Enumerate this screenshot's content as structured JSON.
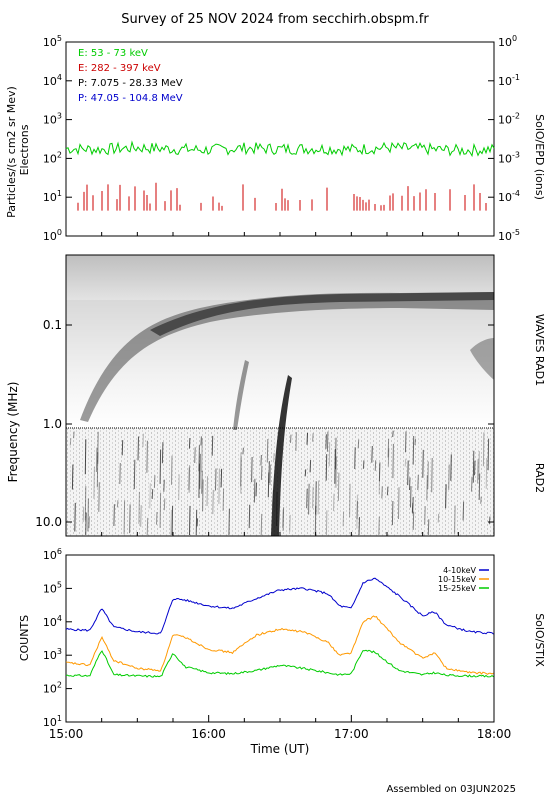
{
  "title": "Survey of 25 NOV 2024 from secchirh.obspm.fr",
  "footer": "Assembled on 03JUN2025",
  "chart_data": [
    {
      "type": "line",
      "panel": "SolO/EPD",
      "ylabel": "Particles/(s cm2 sr Mev)",
      "ylabel2": "Electrons",
      "right_label": "SolO/EPD (ions)",
      "yscale": "log",
      "ylim": [
        1,
        100000
      ],
      "y_ticks": [
        "10^0",
        "10^1",
        "10^2",
        "10^3",
        "10^4",
        "10^5"
      ],
      "y2lim": [
        1e-05,
        1
      ],
      "y2_ticks": [
        "10^-5",
        "10^-4",
        "10^-3",
        "10^-2",
        "10^-1",
        "10^0"
      ],
      "legend": [
        {
          "name": "E: 53 - 73 keV",
          "color": "#00cc00"
        },
        {
          "name": "E: 282 - 397 keV",
          "color": "#cc0000"
        },
        {
          "name": "P: 7.075 - 28.33 MeV",
          "color": "#000000"
        },
        {
          "name": "P: 47.05 - 104.8 MeV",
          "color": "#0000cc"
        }
      ],
      "x": [
        "15:00",
        "15:15",
        "15:30",
        "15:45",
        "16:00",
        "16:15",
        "16:30",
        "16:45",
        "17:00",
        "17:15",
        "17:30",
        "17:45",
        "18:00"
      ],
      "series": [
        {
          "name": "E: 53 - 73 keV",
          "values": [
            180,
            170,
            190,
            175,
            165,
            185,
            175,
            180,
            170,
            190,
            175,
            160,
            170
          ]
        },
        {
          "name": "E: 282 - 397 keV",
          "values": [
            5,
            6,
            7,
            6,
            5,
            7,
            6,
            6,
            7,
            6,
            6,
            5,
            6
          ]
        }
      ]
    },
    {
      "type": "heatmap",
      "panel": "WAVES RAD1 / RAD2",
      "ylabel": "Frequency (MHz)",
      "right_labels": [
        "WAVES RAD1",
        "RAD2"
      ],
      "yscale": "log",
      "y_ticks": [
        "0.1",
        "1.0",
        "10.0"
      ],
      "x_range": [
        "15:00",
        "18:00"
      ]
    },
    {
      "type": "line",
      "panel": "SolO/STIX",
      "ylabel": "COUNTS",
      "right_label": "SolO/STIX",
      "yscale": "log",
      "ylim": [
        10,
        1000000
      ],
      "y_ticks": [
        "10^1",
        "10^2",
        "10^3",
        "10^4",
        "10^5",
        "10^6"
      ],
      "xlabel": "Time (UT)",
      "x_ticks": [
        "15:00",
        "16:00",
        "17:00",
        "18:00"
      ],
      "x": [
        "15:00",
        "15:10",
        "15:15",
        "15:20",
        "15:30",
        "15:40",
        "15:45",
        "15:50",
        "16:00",
        "16:10",
        "16:20",
        "16:30",
        "16:40",
        "16:50",
        "16:55",
        "17:00",
        "17:05",
        "17:10",
        "17:20",
        "17:30",
        "17:35",
        "17:40",
        "17:50",
        "18:00"
      ],
      "series": [
        {
          "name": "4-10keV",
          "color": "#0000cc",
          "values": [
            6000,
            5500,
            25000,
            7000,
            5000,
            4500,
            50000,
            45000,
            30000,
            25000,
            50000,
            90000,
            100000,
            70000,
            30000,
            25000,
            150000,
            200000,
            60000,
            15000,
            20000,
            8000,
            5000,
            4500
          ]
        },
        {
          "name": "10-15keV",
          "color": "#ff9900",
          "values": [
            600,
            500,
            3500,
            700,
            400,
            350,
            4000,
            3500,
            1500,
            1200,
            4000,
            6000,
            5000,
            2500,
            1000,
            1200,
            10000,
            15000,
            2500,
            800,
            1200,
            400,
            300,
            280
          ]
        },
        {
          "name": "15-25keV",
          "color": "#00cc00",
          "values": [
            250,
            240,
            1500,
            260,
            240,
            230,
            1200,
            450,
            300,
            280,
            350,
            500,
            400,
            300,
            260,
            280,
            1500,
            1200,
            350,
            260,
            300,
            250,
            240,
            230
          ]
        }
      ]
    }
  ]
}
